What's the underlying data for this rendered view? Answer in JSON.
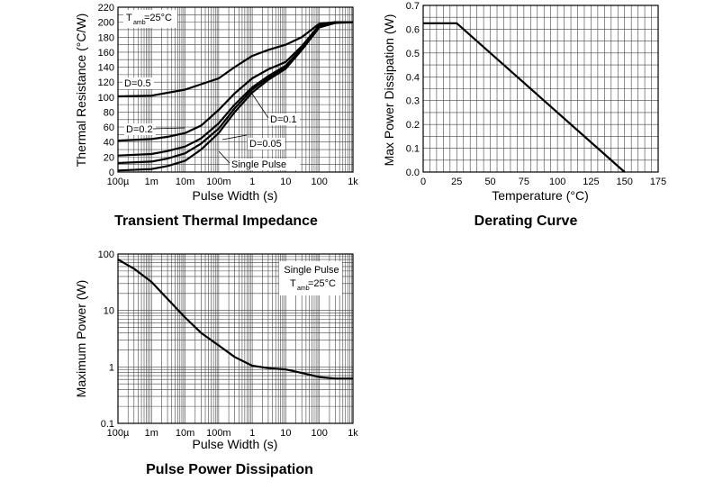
{
  "chart_data": [
    {
      "type": "line",
      "title": "Transient Thermal Impedance",
      "xlabel": "Pulse Width (s)",
      "ylabel": "Thermal Resistance (°C/W)",
      "x_scale": "log",
      "xlim": [
        0.0001,
        1000
      ],
      "ylim": [
        0,
        220
      ],
      "x_ticks": [
        0.0001,
        0.001,
        0.01,
        0.1,
        1,
        10,
        100,
        1000
      ],
      "x_tick_labels": [
        "100µ",
        "1m",
        "10m",
        "100m",
        "1",
        "10",
        "100",
        "1k"
      ],
      "y_ticks": [
        0,
        20,
        40,
        60,
        80,
        100,
        120,
        140,
        160,
        180,
        200,
        220
      ],
      "y_tick_labels": [
        "0",
        "20",
        "40",
        "60",
        "80",
        "100",
        "120",
        "140",
        "160",
        "180",
        "200",
        "220"
      ],
      "grid": true,
      "annotation": {
        "main": "T",
        "sub": "amb",
        "rest": "=25°C"
      },
      "series": [
        {
          "name": "D=0.5",
          "x": [
            0.0001,
            0.001,
            0.01,
            0.1,
            0.3,
            1,
            3,
            10,
            30,
            100,
            300,
            1000
          ],
          "y": [
            101,
            102,
            110,
            125,
            140,
            155,
            163,
            170,
            180,
            198,
            200,
            200
          ]
        },
        {
          "name": "D=0.2",
          "x": [
            0.0001,
            0.001,
            0.003,
            0.01,
            0.03,
            0.1,
            0.3,
            1,
            3,
            10,
            30,
            100,
            300,
            1000
          ],
          "y": [
            42,
            44,
            47,
            52,
            62,
            83,
            105,
            125,
            137,
            147,
            168,
            196,
            200,
            200
          ]
        },
        {
          "name": "D=0.1",
          "x": [
            0.0001,
            0.001,
            0.003,
            0.01,
            0.03,
            0.1,
            0.3,
            1,
            3,
            10,
            30,
            100,
            300,
            1000
          ],
          "y": [
            22,
            24,
            28,
            34,
            45,
            65,
            90,
            113,
            128,
            142,
            165,
            195,
            200,
            200
          ]
        },
        {
          "name": "D=0.05",
          "x": [
            0.0001,
            0.001,
            0.003,
            0.01,
            0.03,
            0.1,
            0.3,
            1,
            3,
            10,
            30,
            100,
            300,
            1000
          ],
          "y": [
            12,
            14,
            18,
            25,
            38,
            58,
            85,
            110,
            126,
            140,
            164,
            194,
            200,
            200
          ]
        },
        {
          "name": "Single Pulse",
          "x": [
            0.0001,
            0.001,
            0.003,
            0.01,
            0.03,
            0.1,
            0.3,
            1,
            3,
            10,
            30,
            100,
            300,
            1000
          ],
          "y": [
            2,
            4,
            8,
            15,
            30,
            52,
            80,
            106,
            123,
            138,
            163,
            193,
            199,
            200
          ]
        }
      ]
    },
    {
      "type": "line",
      "title": "Derating Curve",
      "xlabel": "Temperature (°C)",
      "ylabel": "Max Power Dissipation (W)",
      "xlim": [
        0,
        175
      ],
      "ylim": [
        0,
        0.7
      ],
      "x_ticks": [
        0,
        25,
        50,
        75,
        100,
        125,
        150,
        175
      ],
      "x_tick_labels": [
        "0",
        "25",
        "50",
        "75",
        "100",
        "125",
        "150",
        "175"
      ],
      "y_ticks": [
        0,
        0.1,
        0.2,
        0.3,
        0.4,
        0.5,
        0.6,
        0.7
      ],
      "y_tick_labels": [
        "0.0",
        "0.1",
        "0.2",
        "0.3",
        "0.4",
        "0.5",
        "0.6",
        "0.7"
      ],
      "grid": true,
      "series": [
        {
          "x": [
            0,
            25,
            150
          ],
          "y": [
            0.625,
            0.625,
            0
          ]
        }
      ]
    },
    {
      "type": "line",
      "title": "Pulse Power Dissipation",
      "xlabel": "Pulse Width (s)",
      "ylabel": "Maximum Power (W)",
      "x_scale": "log",
      "y_scale": "log",
      "xlim": [
        0.0001,
        1000
      ],
      "ylim": [
        0.1,
        100
      ],
      "x_ticks": [
        0.0001,
        0.001,
        0.01,
        0.1,
        1,
        10,
        100,
        1000
      ],
      "x_tick_labels": [
        "100µ",
        "1m",
        "10m",
        "100m",
        "1",
        "10",
        "100",
        "1k"
      ],
      "y_ticks": [
        0.1,
        1,
        10,
        100
      ],
      "y_tick_labels": [
        "0.1",
        "1",
        "10",
        "100"
      ],
      "grid": true,
      "annotation": {
        "line1": "Single Pulse",
        "main": "T",
        "sub": "amb",
        "rest": "=25°C"
      },
      "series": [
        {
          "x": [
            0.0001,
            0.0003,
            0.001,
            0.003,
            0.01,
            0.03,
            0.1,
            0.3,
            1,
            3,
            10,
            30,
            100,
            300,
            1000
          ],
          "y": [
            80,
            55,
            32,
            16,
            7.5,
            4,
            2.4,
            1.5,
            1.05,
            0.95,
            0.9,
            0.78,
            0.66,
            0.62,
            0.62
          ]
        }
      ]
    }
  ]
}
